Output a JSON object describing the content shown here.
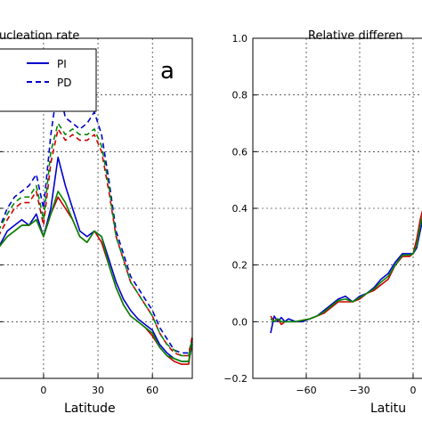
{
  "chart_data": [
    {
      "type": "line",
      "title": "Nucleation rate",
      "visible_title": "ucleation rate",
      "xlabel": "Latitude",
      "ylabel": "",
      "panel_label": "a",
      "x_tick_labels": [
        "0",
        "30",
        "60"
      ],
      "x_tick_values": [
        0,
        30,
        60
      ],
      "legend": {
        "placement": "top-right",
        "entries": [
          {
            "label": "PI",
            "style": "solid"
          },
          {
            "label": "PD",
            "style": "dashed"
          }
        ]
      },
      "grid": true,
      "xlim": [
        -25,
        82
      ],
      "ylim": [
        0,
        6
      ],
      "x": [
        -25,
        -20,
        -16,
        -12,
        -8,
        -4,
        0,
        4,
        8,
        12,
        16,
        20,
        24,
        28,
        32,
        36,
        40,
        44,
        48,
        52,
        56,
        60,
        64,
        68,
        72,
        76,
        80,
        82
      ],
      "series": [
        {
          "style": "solid",
          "color": "#0000cc",
          "values": [
            2.3,
            2.6,
            2.7,
            2.8,
            2.7,
            2.9,
            2.5,
            3.0,
            3.9,
            3.4,
            3.0,
            2.6,
            2.5,
            2.6,
            2.5,
            2.1,
            1.7,
            1.4,
            1.2,
            1.05,
            0.95,
            0.85,
            0.6,
            0.45,
            0.35,
            0.3,
            0.3,
            0.6
          ]
        },
        {
          "style": "solid",
          "color": "#cc0000",
          "values": [
            2.3,
            2.5,
            2.6,
            2.7,
            2.7,
            2.8,
            2.5,
            2.9,
            3.2,
            3.0,
            2.8,
            2.5,
            2.4,
            2.6,
            2.4,
            2.0,
            1.6,
            1.3,
            1.1,
            1.0,
            0.9,
            0.75,
            0.55,
            0.4,
            0.3,
            0.25,
            0.25,
            0.7
          ]
        },
        {
          "style": "solid",
          "color": "#008800",
          "values": [
            2.3,
            2.5,
            2.6,
            2.7,
            2.7,
            2.8,
            2.5,
            2.9,
            3.3,
            3.1,
            2.8,
            2.5,
            2.4,
            2.6,
            2.5,
            2.0,
            1.6,
            1.3,
            1.1,
            1.0,
            0.9,
            0.8,
            0.55,
            0.4,
            0.35,
            0.3,
            0.3,
            0.65
          ]
        },
        {
          "style": "dashed",
          "color": "#0000cc",
          "values": [
            2.6,
            3.0,
            3.2,
            3.3,
            3.4,
            3.6,
            3.0,
            4.3,
            5.2,
            4.6,
            4.5,
            4.4,
            4.5,
            4.7,
            4.3,
            3.5,
            2.6,
            2.2,
            1.8,
            1.6,
            1.4,
            1.2,
            0.9,
            0.7,
            0.5,
            0.45,
            0.45,
            0.7
          ]
        },
        {
          "style": "dashed",
          "color": "#cc0000",
          "values": [
            2.5,
            2.8,
            3.0,
            3.1,
            3.1,
            3.3,
            2.7,
            3.8,
            4.4,
            4.2,
            4.3,
            4.2,
            4.2,
            4.3,
            4.0,
            3.3,
            2.5,
            2.1,
            1.7,
            1.5,
            1.3,
            1.1,
            0.8,
            0.6,
            0.45,
            0.4,
            0.4,
            0.75
          ]
        },
        {
          "style": "dashed",
          "color": "#008800",
          "values": [
            2.6,
            2.9,
            3.1,
            3.2,
            3.2,
            3.4,
            2.8,
            4.0,
            4.5,
            4.3,
            4.4,
            4.3,
            4.3,
            4.4,
            4.1,
            3.4,
            2.5,
            2.1,
            1.7,
            1.5,
            1.3,
            1.1,
            0.8,
            0.6,
            0.5,
            0.4,
            0.4,
            0.7
          ]
        }
      ]
    },
    {
      "type": "line",
      "title": "Relative difference",
      "visible_title": "Relative differen",
      "xlabel": "Latitude",
      "visible_xlabel": "Latitu",
      "ylabel": "",
      "y_tick_labels": [
        "1.0",
        "0.8",
        "0.6",
        "0.4",
        "0.2",
        "0.0",
        "−0.2"
      ],
      "y_tick_values": [
        1.0,
        0.8,
        0.6,
        0.4,
        0.2,
        0.0,
        -0.2
      ],
      "x_tick_labels": [
        "−60",
        "−30",
        "0"
      ],
      "x_tick_values": [
        -60,
        -30,
        0
      ],
      "grid": true,
      "xlim": [
        -90,
        10
      ],
      "ylim": [
        -0.2,
        1.0
      ],
      "x": [
        -80,
        -78,
        -76,
        -74,
        -72,
        -70,
        -66,
        -62,
        -58,
        -54,
        -50,
        -46,
        -42,
        -38,
        -34,
        -30,
        -26,
        -22,
        -18,
        -14,
        -10,
        -6,
        -2,
        0,
        2,
        4,
        6,
        8,
        10
      ],
      "series": [
        {
          "style": "solid",
          "color": "#0000cc",
          "values": [
            -0.04,
            0.02,
            0.0,
            0.015,
            0.0,
            0.01,
            0.0,
            0.0,
            0.01,
            0.02,
            0.04,
            0.06,
            0.08,
            0.09,
            0.07,
            0.09,
            0.1,
            0.12,
            0.15,
            0.17,
            0.21,
            0.24,
            0.24,
            0.24,
            0.26,
            0.32,
            0.38,
            0.41,
            0.38
          ]
        },
        {
          "style": "solid",
          "color": "#cc0000",
          "values": [
            0.02,
            0.0,
            0.01,
            -0.01,
            0.0,
            0.0,
            0.0,
            0.005,
            0.01,
            0.02,
            0.03,
            0.05,
            0.07,
            0.07,
            0.07,
            0.08,
            0.1,
            0.11,
            0.13,
            0.15,
            0.2,
            0.23,
            0.23,
            0.24,
            0.29,
            0.36,
            0.41,
            0.43,
            0.4
          ]
        },
        {
          "style": "solid",
          "color": "#008800",
          "values": [
            0.01,
            0.0,
            0.01,
            0.0,
            0.0,
            0.0,
            0.0,
            0.005,
            0.01,
            0.02,
            0.035,
            0.055,
            0.075,
            0.08,
            0.07,
            0.085,
            0.1,
            0.115,
            0.14,
            0.16,
            0.2,
            0.235,
            0.235,
            0.24,
            0.27,
            0.34,
            0.39,
            0.42,
            0.39
          ]
        }
      ]
    }
  ]
}
